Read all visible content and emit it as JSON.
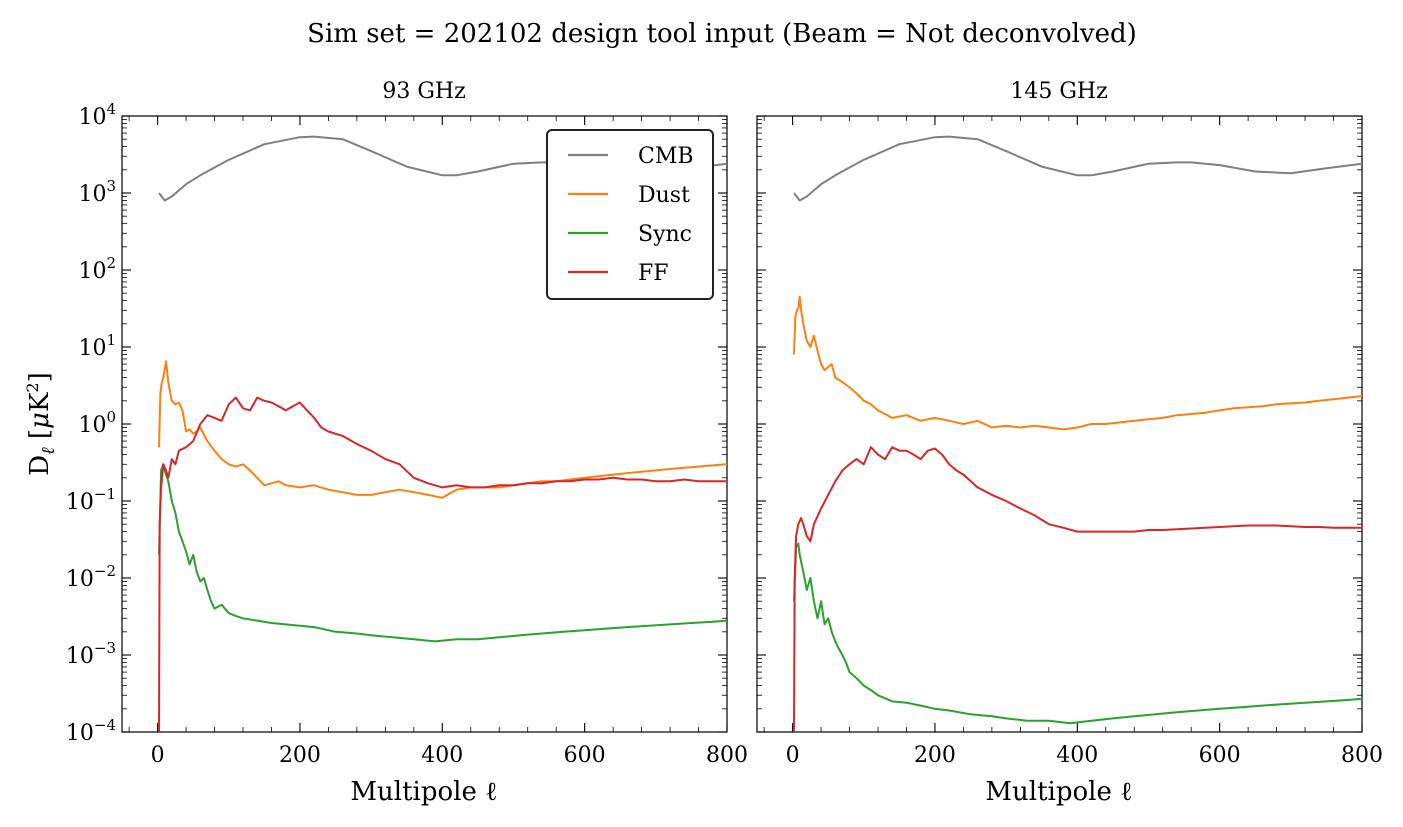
{
  "suptitle": "Sim set = 202102 design tool input (Beam = Not deconvolved)",
  "ylabel": "Dℓ [μK²]",
  "y_ticks": [
    {
      "exp": "4",
      "value": 10000
    },
    {
      "exp": "3",
      "value": 1000
    },
    {
      "exp": "2",
      "value": 100
    },
    {
      "exp": "1",
      "value": 10
    },
    {
      "exp": "0",
      "value": 1
    },
    {
      "exp": "−1",
      "value": 0.1
    },
    {
      "exp": "−2",
      "value": 0.01
    },
    {
      "exp": "−3",
      "value": 0.001
    },
    {
      "exp": "−4",
      "value": 0.0001
    }
  ],
  "x_ticks": [
    "0",
    "200",
    "400",
    "600",
    "800"
  ],
  "legend": {
    "placement": "upper right (left panel)",
    "entries": [
      {
        "label": "CMB",
        "color": "#7f7f7f"
      },
      {
        "label": "Dust",
        "color": "#ff7f0e"
      },
      {
        "label": "Sync",
        "color": "#2ca02c"
      },
      {
        "label": "FF",
        "color": "#d62728"
      }
    ]
  },
  "chart_data": [
    {
      "type": "line",
      "title": "93 GHz",
      "xlabel": "Multipole ℓ",
      "ylabel": "Dℓ [μK²]",
      "xlim": [
        -50,
        800
      ],
      "ylim": [
        0.0001,
        10000
      ],
      "yscale": "log",
      "series": [
        {
          "name": "CMB",
          "color": "#7f7f7f",
          "x": [
            2,
            10,
            20,
            40,
            60,
            100,
            150,
            200,
            220,
            260,
            300,
            350,
            400,
            420,
            450,
            500,
            540,
            560,
            600,
            650,
            700,
            750,
            800
          ],
          "y": [
            1000,
            800,
            900,
            1300,
            1700,
            2700,
            4300,
            5300,
            5400,
            5000,
            3500,
            2200,
            1700,
            1700,
            1900,
            2400,
            2500,
            2500,
            2300,
            1900,
            1800,
            2100,
            2400
          ]
        },
        {
          "name": "Dust",
          "color": "#ff7f0e",
          "x": [
            2,
            4,
            6,
            8,
            12,
            15,
            20,
            25,
            30,
            35,
            40,
            45,
            50,
            55,
            60,
            70,
            80,
            90,
            100,
            110,
            120,
            130,
            140,
            150,
            160,
            170,
            180,
            200,
            220,
            240,
            260,
            280,
            300,
            320,
            340,
            360,
            380,
            400,
            420,
            440,
            460,
            480,
            500,
            520,
            540,
            560,
            580,
            600,
            620,
            640,
            660,
            680,
            700,
            720,
            740,
            760,
            780,
            800
          ],
          "y": [
            0.5,
            2.5,
            3.5,
            4.0,
            6.5,
            3.5,
            2.0,
            1.8,
            1.9,
            1.5,
            0.8,
            0.85,
            0.75,
            0.8,
            0.9,
            0.6,
            0.45,
            0.35,
            0.3,
            0.28,
            0.3,
            0.25,
            0.2,
            0.16,
            0.17,
            0.18,
            0.16,
            0.15,
            0.16,
            0.14,
            0.13,
            0.12,
            0.12,
            0.13,
            0.14,
            0.13,
            0.12,
            0.11,
            0.14,
            0.15,
            0.15,
            0.15,
            0.16,
            0.17,
            0.18,
            0.18,
            0.19,
            0.2,
            0.21,
            0.22,
            0.23,
            0.24,
            0.25,
            0.26,
            0.27,
            0.28,
            0.29,
            0.3
          ]
        },
        {
          "name": "Sync",
          "color": "#2ca02c",
          "x": [
            2,
            5,
            8,
            10,
            15,
            20,
            25,
            30,
            35,
            40,
            45,
            50,
            55,
            60,
            65,
            70,
            75,
            80,
            90,
            100,
            110,
            120,
            140,
            160,
            180,
            200,
            220,
            250,
            280,
            300,
            330,
            360,
            390,
            420,
            450,
            480,
            510,
            540,
            570,
            600,
            630,
            660,
            690,
            720,
            750,
            780,
            800
          ],
          "y": [
            0.02,
            0.25,
            0.3,
            0.25,
            0.18,
            0.1,
            0.07,
            0.04,
            0.03,
            0.022,
            0.015,
            0.02,
            0.012,
            0.009,
            0.01,
            0.007,
            0.005,
            0.004,
            0.0045,
            0.0035,
            0.0032,
            0.003,
            0.0028,
            0.0026,
            0.0025,
            0.0024,
            0.0023,
            0.002,
            0.0019,
            0.0018,
            0.0017,
            0.0016,
            0.0015,
            0.0016,
            0.0016,
            0.0017,
            0.0018,
            0.0019,
            0.002,
            0.0021,
            0.0022,
            0.0023,
            0.0024,
            0.0025,
            0.0026,
            0.0027,
            0.0028
          ]
        },
        {
          "name": "FF",
          "color": "#d62728",
          "x": [
            2,
            3,
            5,
            8,
            12,
            15,
            20,
            25,
            30,
            40,
            50,
            60,
            70,
            80,
            90,
            100,
            110,
            120,
            130,
            140,
            150,
            160,
            170,
            180,
            190,
            200,
            210,
            220,
            230,
            240,
            260,
            280,
            300,
            320,
            340,
            360,
            380,
            400,
            420,
            440,
            460,
            480,
            500,
            520,
            540,
            560,
            580,
            600,
            620,
            640,
            660,
            680,
            700,
            720,
            740,
            760,
            780,
            800
          ],
          "y": [
            0.0001,
            0.05,
            0.15,
            0.3,
            0.25,
            0.2,
            0.35,
            0.3,
            0.45,
            0.5,
            0.6,
            1.0,
            1.3,
            1.2,
            1.1,
            1.8,
            2.2,
            1.6,
            1.5,
            2.2,
            2.0,
            1.9,
            1.7,
            1.5,
            1.7,
            1.9,
            1.5,
            1.2,
            0.9,
            0.8,
            0.7,
            0.55,
            0.45,
            0.35,
            0.3,
            0.2,
            0.17,
            0.15,
            0.16,
            0.15,
            0.15,
            0.16,
            0.16,
            0.17,
            0.17,
            0.18,
            0.18,
            0.19,
            0.19,
            0.2,
            0.19,
            0.19,
            0.18,
            0.18,
            0.19,
            0.18,
            0.18,
            0.18
          ]
        }
      ]
    },
    {
      "type": "line",
      "title": "145 GHz",
      "xlabel": "Multipole ℓ",
      "ylabel": "",
      "xlim": [
        -50,
        800
      ],
      "ylim": [
        0.0001,
        10000
      ],
      "yscale": "log",
      "series": [
        {
          "name": "CMB",
          "color": "#7f7f7f",
          "x": [
            2,
            10,
            20,
            40,
            60,
            100,
            150,
            200,
            220,
            260,
            300,
            350,
            400,
            420,
            450,
            500,
            540,
            560,
            600,
            650,
            700,
            750,
            800
          ],
          "y": [
            1000,
            800,
            900,
            1300,
            1700,
            2700,
            4300,
            5300,
            5400,
            5000,
            3500,
            2200,
            1700,
            1700,
            1900,
            2400,
            2500,
            2500,
            2300,
            1900,
            1800,
            2100,
            2400
          ]
        },
        {
          "name": "Dust",
          "color": "#ff7f0e",
          "x": [
            2,
            4,
            6,
            8,
            10,
            12,
            15,
            20,
            25,
            30,
            35,
            40,
            45,
            50,
            55,
            60,
            70,
            80,
            90,
            100,
            110,
            120,
            140,
            160,
            180,
            200,
            220,
            240,
            260,
            280,
            300,
            320,
            340,
            360,
            380,
            400,
            420,
            440,
            460,
            480,
            500,
            520,
            540,
            560,
            580,
            600,
            620,
            640,
            660,
            680,
            700,
            720,
            740,
            760,
            780,
            800
          ],
          "y": [
            8,
            25,
            30,
            32,
            45,
            30,
            20,
            12,
            10,
            14,
            9,
            6,
            5,
            5.5,
            6,
            4,
            3.5,
            3,
            2.5,
            2.0,
            1.8,
            1.5,
            1.2,
            1.3,
            1.1,
            1.2,
            1.1,
            1.0,
            1.1,
            0.9,
            0.95,
            0.9,
            0.95,
            0.9,
            0.85,
            0.9,
            1.0,
            1.0,
            1.05,
            1.1,
            1.15,
            1.2,
            1.3,
            1.35,
            1.4,
            1.5,
            1.6,
            1.65,
            1.7,
            1.8,
            1.85,
            1.9,
            2.0,
            2.1,
            2.2,
            2.3
          ]
        },
        {
          "name": "Sync",
          "color": "#2ca02c",
          "x": [
            2,
            5,
            8,
            10,
            15,
            20,
            25,
            30,
            35,
            40,
            45,
            50,
            55,
            60,
            65,
            70,
            75,
            80,
            90,
            100,
            110,
            120,
            140,
            160,
            180,
            200,
            220,
            250,
            280,
            300,
            330,
            360,
            390,
            420,
            450,
            480,
            510,
            540,
            570,
            600,
            630,
            660,
            690,
            720,
            750,
            780,
            800
          ],
          "y": [
            0.005,
            0.025,
            0.028,
            0.02,
            0.012,
            0.007,
            0.01,
            0.005,
            0.003,
            0.005,
            0.0025,
            0.003,
            0.002,
            0.0015,
            0.0012,
            0.001,
            0.0008,
            0.0006,
            0.0005,
            0.0004,
            0.00035,
            0.0003,
            0.00025,
            0.00024,
            0.00022,
            0.0002,
            0.00019,
            0.00017,
            0.00016,
            0.00015,
            0.00014,
            0.00014,
            0.00013,
            0.00014,
            0.00015,
            0.00016,
            0.00017,
            0.00018,
            0.00019,
            0.0002,
            0.00021,
            0.00022,
            0.00023,
            0.00024,
            0.00025,
            0.00026,
            0.00027
          ]
        },
        {
          "name": "FF",
          "color": "#d62728",
          "x": [
            2,
            3,
            5,
            8,
            12,
            15,
            20,
            25,
            30,
            40,
            50,
            60,
            70,
            80,
            90,
            100,
            110,
            120,
            130,
            140,
            150,
            160,
            170,
            180,
            190,
            200,
            210,
            220,
            230,
            240,
            260,
            280,
            300,
            320,
            340,
            360,
            380,
            400,
            420,
            440,
            460,
            480,
            500,
            520,
            540,
            560,
            580,
            600,
            620,
            640,
            660,
            680,
            700,
            720,
            740,
            760,
            780,
            800
          ],
          "y": [
            0.0001,
            0.01,
            0.035,
            0.05,
            0.06,
            0.05,
            0.035,
            0.03,
            0.05,
            0.08,
            0.12,
            0.18,
            0.25,
            0.3,
            0.35,
            0.3,
            0.5,
            0.4,
            0.35,
            0.5,
            0.45,
            0.45,
            0.4,
            0.35,
            0.45,
            0.48,
            0.4,
            0.3,
            0.25,
            0.22,
            0.15,
            0.12,
            0.1,
            0.08,
            0.065,
            0.05,
            0.045,
            0.04,
            0.04,
            0.04,
            0.04,
            0.04,
            0.042,
            0.042,
            0.043,
            0.044,
            0.045,
            0.046,
            0.047,
            0.048,
            0.048,
            0.048,
            0.047,
            0.046,
            0.046,
            0.045,
            0.045,
            0.045
          ]
        }
      ]
    }
  ]
}
